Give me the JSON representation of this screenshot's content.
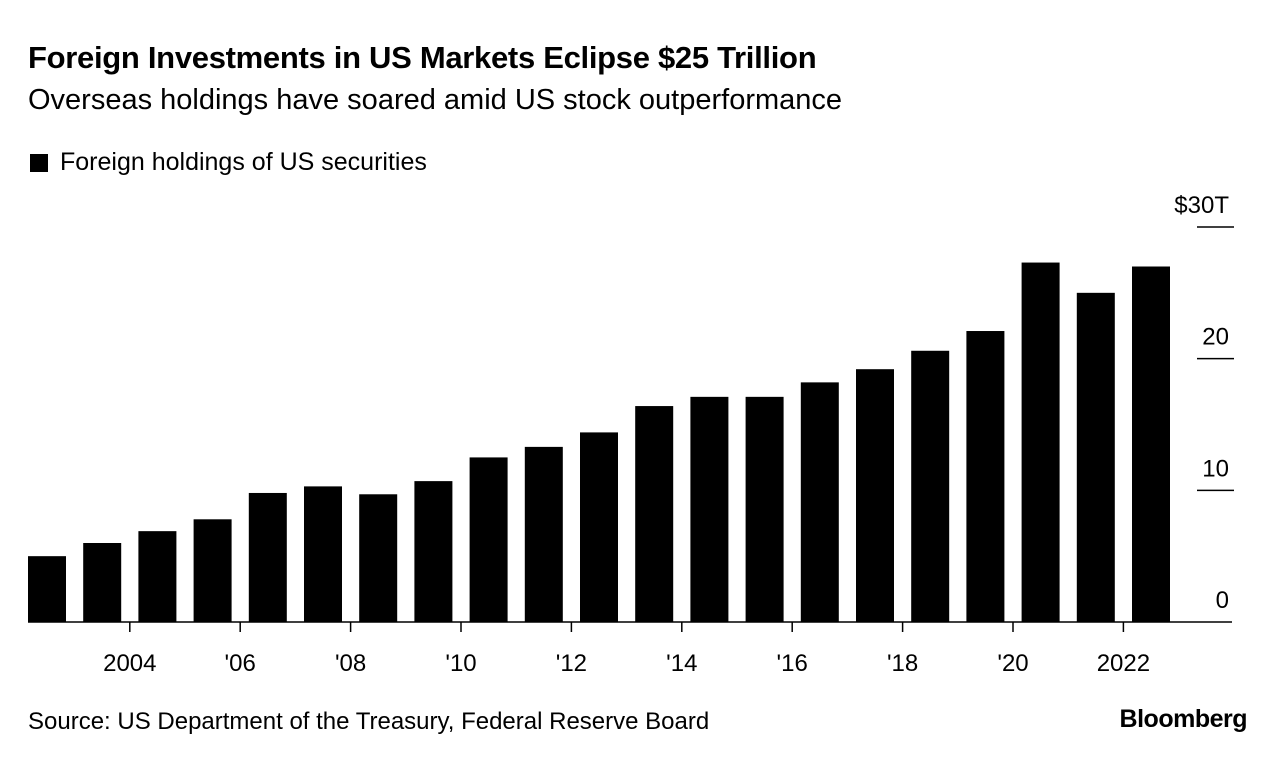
{
  "header": {
    "title": "Foreign Investments in US Markets Eclipse $25 Trillion",
    "subtitle": "Overseas holdings have soared amid US stock outperformance"
  },
  "legend": {
    "label": "Foreign holdings of US securities",
    "color": "#000000"
  },
  "footer": {
    "source": "Source: US Department of the Treasury, Federal Reserve Board",
    "brand": "Bloomberg"
  },
  "chart_data": {
    "type": "bar",
    "series": [
      {
        "name": "Foreign holdings of US securities",
        "color": "#000000",
        "categories": [
          2003,
          2004,
          2005,
          2006,
          2007,
          2008,
          2009,
          2010,
          2011,
          2012,
          2013,
          2014,
          2015,
          2016,
          2017,
          2018,
          2019,
          2020,
          2021,
          2022,
          2023
        ],
        "values": [
          5.0,
          6.0,
          6.9,
          7.8,
          9.8,
          10.3,
          9.7,
          10.7,
          12.5,
          13.3,
          14.4,
          16.4,
          17.1,
          17.1,
          18.2,
          19.2,
          20.6,
          22.1,
          27.3,
          25.0,
          27.0
        ]
      }
    ],
    "x_tick_labels": [
      {
        "year": 2004,
        "label": "2004"
      },
      {
        "year": 2006,
        "label": "'06"
      },
      {
        "year": 2008,
        "label": "'08"
      },
      {
        "year": 2010,
        "label": "'10"
      },
      {
        "year": 2012,
        "label": "'12"
      },
      {
        "year": 2014,
        "label": "'14"
      },
      {
        "year": 2016,
        "label": "'16"
      },
      {
        "year": 2018,
        "label": "'18"
      },
      {
        "year": 2020,
        "label": "'20"
      },
      {
        "year": 2022,
        "label": "2022"
      }
    ],
    "y_ticks": [
      {
        "value": 0,
        "label": "0"
      },
      {
        "value": 10,
        "label": "10"
      },
      {
        "value": 20,
        "label": "20"
      },
      {
        "value": 30,
        "label": "$30T"
      }
    ],
    "ylim": [
      0,
      30
    ],
    "y_axis_position": "right",
    "grid": false,
    "legend_position": "top-left"
  }
}
